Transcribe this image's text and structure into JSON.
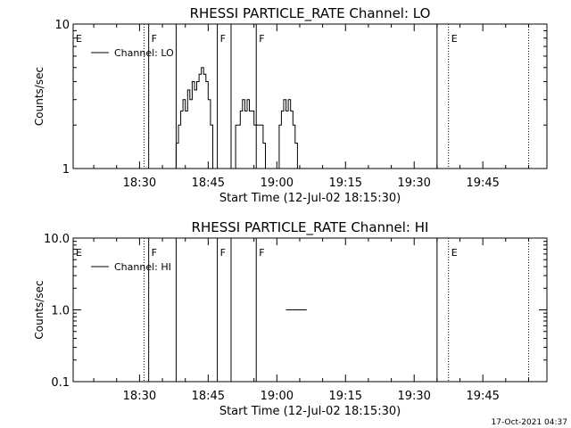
{
  "footer": {
    "timestamp": "17-Oct-2021 04:37"
  },
  "chart_data": [
    {
      "type": "line",
      "title": "RHESSI PARTICLE_RATE Channel: LO",
      "xlabel": "Start Time (12-Jul-02 18:15:30)",
      "ylabel": "Counts/sec",
      "yscale": "log",
      "ylim": [
        1,
        10
      ],
      "xlim": [
        "18:15:30",
        "19:59:00"
      ],
      "x_ticks": [
        "18:30",
        "18:45",
        "19:00",
        "19:15",
        "19:30",
        "19:45"
      ],
      "y_tick_labels": [
        "1",
        "10"
      ],
      "legend": {
        "position": "top-left",
        "entries": [
          "Channel: LO"
        ]
      },
      "series": [
        {
          "name": "Channel: LO",
          "points": [
            [
              "18:38:00",
              1
            ],
            [
              "18:38:00",
              1.5
            ],
            [
              "18:38:30",
              1.5
            ],
            [
              "18:38:30",
              2
            ],
            [
              "18:39:00",
              2
            ],
            [
              "18:39:00",
              2.5
            ],
            [
              "18:39:30",
              2.5
            ],
            [
              "18:39:30",
              3
            ],
            [
              "18:40:00",
              3
            ],
            [
              "18:40:00",
              2.5
            ],
            [
              "18:40:30",
              2.5
            ],
            [
              "18:40:30",
              3.5
            ],
            [
              "18:41:00",
              3.5
            ],
            [
              "18:41:00",
              3
            ],
            [
              "18:41:30",
              3
            ],
            [
              "18:41:30",
              4
            ],
            [
              "18:42:00",
              4
            ],
            [
              "18:42:00",
              3.5
            ],
            [
              "18:42:30",
              3.5
            ],
            [
              "18:42:30",
              4
            ],
            [
              "18:43:00",
              4
            ],
            [
              "18:43:00",
              4.5
            ],
            [
              "18:43:30",
              4.5
            ],
            [
              "18:43:30",
              5
            ],
            [
              "18:44:00",
              5
            ],
            [
              "18:44:00",
              4.5
            ],
            [
              "18:44:30",
              4.5
            ],
            [
              "18:44:30",
              4
            ],
            [
              "18:45:00",
              4
            ],
            [
              "18:45:00",
              3
            ],
            [
              "18:45:30",
              3
            ],
            [
              "18:45:30",
              2
            ],
            [
              "18:46:00",
              2
            ],
            [
              "18:46:00",
              1
            ]
          ]
        },
        {
          "name": "Channel: LO",
          "points": [
            [
              "18:51:00",
              1
            ],
            [
              "18:51:00",
              2
            ],
            [
              "18:52:00",
              2
            ],
            [
              "18:52:00",
              2.5
            ],
            [
              "18:52:30",
              2.5
            ],
            [
              "18:52:30",
              3
            ],
            [
              "18:53:00",
              3
            ],
            [
              "18:53:00",
              2.5
            ],
            [
              "18:53:30",
              2.5
            ],
            [
              "18:53:30",
              3
            ],
            [
              "18:54:00",
              3
            ],
            [
              "18:54:00",
              2.5
            ],
            [
              "18:55:00",
              2.5
            ],
            [
              "18:55:00",
              2
            ],
            [
              "18:57:00",
              2
            ],
            [
              "18:57:00",
              1.5
            ],
            [
              "18:57:30",
              1.5
            ],
            [
              "18:57:30",
              1
            ]
          ]
        },
        {
          "name": "Channel: LO",
          "points": [
            [
              "19:00:30",
              1
            ],
            [
              "19:00:30",
              2
            ],
            [
              "19:01:00",
              2
            ],
            [
              "19:01:00",
              2.5
            ],
            [
              "19:01:30",
              2.5
            ],
            [
              "19:01:30",
              3
            ],
            [
              "19:02:00",
              3
            ],
            [
              "19:02:00",
              2.5
            ],
            [
              "19:02:30",
              2.5
            ],
            [
              "19:02:30",
              3
            ],
            [
              "19:03:00",
              3
            ],
            [
              "19:03:00",
              2.5
            ],
            [
              "19:03:30",
              2.5
            ],
            [
              "19:03:30",
              2
            ],
            [
              "19:04:00",
              2
            ],
            [
              "19:04:00",
              1.5
            ],
            [
              "19:04:30",
              1.5
            ],
            [
              "19:04:30",
              1
            ]
          ]
        }
      ],
      "event_markers": [
        {
          "time": "18:15:30",
          "label": "E",
          "style": "dotted"
        },
        {
          "time": "18:31:00",
          "label": "",
          "style": "dotted"
        },
        {
          "time": "18:32:00",
          "label": "F",
          "style": "solid"
        },
        {
          "time": "18:38:00",
          "label": "",
          "style": "solid"
        },
        {
          "time": "18:47:00",
          "label": "F",
          "style": "solid"
        },
        {
          "time": "18:50:00",
          "label": "",
          "style": "solid"
        },
        {
          "time": "18:55:30",
          "label": "F",
          "style": "solid"
        },
        {
          "time": "19:35:00",
          "label": "",
          "style": "solid"
        },
        {
          "time": "19:37:30",
          "label": "E",
          "style": "dotted"
        },
        {
          "time": "19:55:00",
          "label": "",
          "style": "dotted"
        }
      ]
    },
    {
      "type": "line",
      "title": "RHESSI PARTICLE_RATE Channel: HI",
      "xlabel": "Start Time (12-Jul-02 18:15:30)",
      "ylabel": "Counts/sec",
      "yscale": "log",
      "ylim": [
        0.1,
        10
      ],
      "xlim": [
        "18:15:30",
        "19:59:00"
      ],
      "x_ticks": [
        "18:30",
        "18:45",
        "19:00",
        "19:15",
        "19:30",
        "19:45"
      ],
      "y_tick_labels": [
        "0.1",
        "1.0",
        "10.0"
      ],
      "legend": {
        "position": "top-left",
        "entries": [
          "Channel: HI"
        ]
      },
      "series": [
        {
          "name": "Channel: HI",
          "points": [
            [
              "19:02:00",
              1
            ],
            [
              "19:06:30",
              1
            ]
          ]
        },
        {
          "name": "Channel: HI",
          "points": [
            [
              "19:58:00",
              1
            ],
            [
              "19:59:00",
              1
            ]
          ]
        }
      ],
      "event_markers": [
        {
          "time": "18:15:30",
          "label": "E",
          "style": "dotted"
        },
        {
          "time": "18:31:00",
          "label": "",
          "style": "dotted"
        },
        {
          "time": "18:32:00",
          "label": "F",
          "style": "solid"
        },
        {
          "time": "18:38:00",
          "label": "",
          "style": "solid"
        },
        {
          "time": "18:47:00",
          "label": "F",
          "style": "solid"
        },
        {
          "time": "18:50:00",
          "label": "",
          "style": "solid"
        },
        {
          "time": "18:55:30",
          "label": "F",
          "style": "solid"
        },
        {
          "time": "19:35:00",
          "label": "",
          "style": "solid"
        },
        {
          "time": "19:37:30",
          "label": "E",
          "style": "dotted"
        },
        {
          "time": "19:55:00",
          "label": "",
          "style": "dotted"
        }
      ]
    }
  ]
}
